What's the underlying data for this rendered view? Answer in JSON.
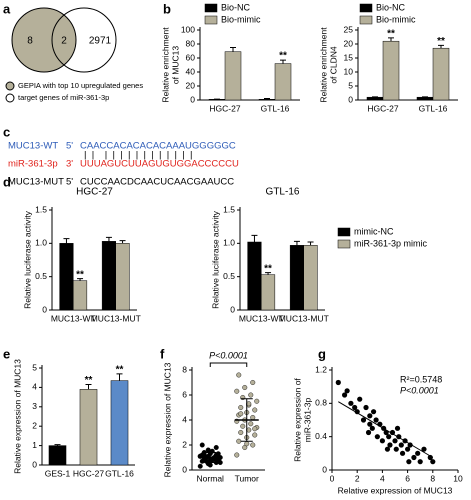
{
  "panel_labels": [
    "a",
    "b",
    "c",
    "d",
    "e",
    "f",
    "g"
  ],
  "venn": {
    "left_only": 8,
    "overlap": 2,
    "right_only": 2971,
    "left_color": "#b5b09a",
    "right_color": "#ffffff",
    "legend": [
      "GEPIA with top 10 upregulated genes",
      "target genes of miR-361-3p"
    ]
  },
  "sequences": {
    "rows": [
      {
        "name": "MUC13-WT",
        "end": "5'",
        "seq": "CAACCACACACACAAAUGGGGGC",
        "color": "#2e5cb8"
      },
      {
        "name": "miR-361-3p",
        "end": "3'",
        "seq": "UUUAGUCUUAGUGUGGACCCCCU",
        "color": "#e0231c"
      },
      {
        "name": "MUC13-MUT",
        "end": "5'",
        "seq": "CUCCAACDCAACUCAACGAAUCC",
        "color": "#000000"
      }
    ],
    "pairing": "|  |    |  |  |  |  |  |  |  |  |  |  |  |"
  },
  "chart_data": [
    {
      "type": "bar",
      "ylabel": [
        "Relative enrichment",
        "of MUC13"
      ],
      "categories": [
        "HGC-27",
        "GTL-16"
      ],
      "series": [
        {
          "name": "Bio-NC",
          "color": "#000000",
          "values": [
            1,
            1
          ],
          "errors": [
            0.3,
            1.2
          ]
        },
        {
          "name": "Bio-mimic",
          "color": "#b5b09a",
          "values": [
            69,
            52
          ],
          "errors": [
            6,
            5
          ],
          "significance": [
            null,
            "**"
          ]
        }
      ],
      "ylim": [
        0,
        100
      ],
      "yticks": [
        0,
        20,
        40,
        60,
        80,
        100
      ]
    },
    {
      "type": "bar",
      "ylabel": [
        "Relative enrichment",
        "of CLDN4"
      ],
      "categories": [
        "HGC-27",
        "GTL-16"
      ],
      "series": [
        {
          "name": "Bio-NC",
          "color": "#000000",
          "values": [
            1,
            1
          ],
          "errors": [
            0.1,
            0.1
          ]
        },
        {
          "name": "Bio-mimic",
          "color": "#b5b09a",
          "values": [
            21,
            18.5
          ],
          "errors": [
            1.2,
            1
          ],
          "significance": [
            "**",
            "**"
          ]
        }
      ],
      "ylim": [
        0,
        25
      ],
      "yticks": [
        0,
        5,
        10,
        15,
        20,
        25
      ]
    },
    {
      "type": "bar",
      "title": "HGC-27",
      "ylabel": "Relative luciferase activity",
      "categories": [
        "MUC13-WT",
        "MUC13-MUT"
      ],
      "series": [
        {
          "name": "mimic-NC",
          "color": "#000000",
          "values": [
            1.0,
            1.03
          ],
          "errors": [
            0.07,
            0.06
          ]
        },
        {
          "name": "miR-361-3p mimic",
          "color": "#b5b09a",
          "values": [
            0.44,
            1.0
          ],
          "errors": [
            0.03,
            0.04
          ],
          "significance": [
            "**",
            null
          ]
        }
      ],
      "ylim": [
        0,
        1.5
      ],
      "yticks": [
        0,
        0.5,
        {
          "value": 1,
          "label": "1.0"
        },
        1.5
      ]
    },
    {
      "type": "bar",
      "title": "GTL-16",
      "ylabel": "Relative luciferase activity",
      "categories": [
        "MUC13-WT",
        "MUC13-MUT"
      ],
      "series": [
        {
          "color": "#000000",
          "values": [
            1.02,
            0.97
          ],
          "errors": [
            0.1,
            0.06
          ]
        },
        {
          "color": "#b5b09a",
          "values": [
            0.53,
            0.97
          ],
          "errors": [
            0.03,
            0.05
          ],
          "significance": [
            "**",
            null
          ]
        }
      ],
      "ylim": [
        0,
        1.5
      ],
      "yticks": [
        0,
        0.5,
        {
          "value": 1,
          "label": "1.0"
        },
        1.5
      ]
    },
    {
      "type": "bar",
      "ylabel": "Relative expression of MUC13",
      "categories": [
        "GES-1",
        "HGC-27",
        "GTL-16"
      ],
      "series": [
        {
          "colors": [
            "#000000",
            "#b5b09a",
            "#5b8ac8"
          ],
          "values": [
            1.0,
            3.9,
            4.35
          ],
          "errors": [
            0.05,
            0.25,
            0.35
          ],
          "significance": [
            null,
            "**",
            "**"
          ]
        }
      ],
      "ylim": [
        0,
        5
      ],
      "yticks": [
        0,
        1,
        2,
        3,
        4,
        5
      ]
    },
    {
      "type": "dotplot",
      "ylabel": "Relative expression of MUC13",
      "categories": [
        "Normal",
        "Tumor"
      ],
      "annotation": "P<0.0001",
      "values": [
        [
          0.3,
          0.5,
          0.6,
          0.7,
          0.8,
          0.8,
          0.9,
          0.9,
          1.0,
          1.0,
          1.0,
          1.1,
          1.1,
          1.2,
          1.2,
          1.3,
          1.3,
          1.4,
          1.5,
          0.6,
          0.7,
          0.9,
          1.1,
          1.6,
          1.8,
          2.0,
          0.4,
          1.0,
          1.2,
          0.8
        ],
        [
          1.2,
          1.8,
          2.0,
          2.3,
          2.6,
          2.8,
          3.0,
          3.2,
          3.4,
          3.5,
          3.7,
          3.9,
          4.0,
          4.2,
          4.4,
          4.6,
          4.8,
          5.0,
          5.2,
          5.5,
          5.8,
          6.0,
          6.3,
          6.6,
          7.0,
          7.6,
          2.1,
          3.3,
          4.5,
          5.3
        ]
      ],
      "means": [
        1.0,
        4.0
      ],
      "errors": [
        0.4,
        1.7
      ],
      "color": "#b5b09a",
      "ylim": [
        0,
        8
      ],
      "yticks": [
        0,
        2,
        4,
        6,
        8
      ]
    },
    {
      "type": "scatter",
      "ylabel": [
        "Relative expression of",
        "miR-361-3p"
      ],
      "xlabel": "Relative expression of MUC13",
      "annotations": [
        "R²=0.5748",
        "P<0.0001"
      ],
      "color": "#000000",
      "x": [
        0.5,
        1.0,
        1.2,
        1.5,
        1.8,
        2.0,
        2.2,
        2.5,
        2.7,
        3.0,
        3.0,
        3.2,
        3.5,
        3.6,
        3.8,
        4.0,
        4.1,
        4.3,
        4.5,
        4.6,
        4.8,
        5.0,
        5.1,
        5.3,
        5.5,
        5.6,
        5.8,
        6.0,
        6.2,
        6.5,
        6.8,
        7.0,
        7.3,
        7.8,
        8.0,
        3.3,
        4.4,
        2.9,
        5.2,
        6.1
      ],
      "y": [
        1.05,
        0.9,
        0.95,
        0.8,
        0.75,
        0.7,
        0.85,
        0.6,
        0.75,
        0.55,
        0.65,
        0.5,
        0.6,
        0.4,
        0.55,
        0.35,
        0.5,
        0.45,
        0.4,
        0.3,
        0.45,
        0.35,
        0.25,
        0.4,
        0.3,
        0.2,
        0.35,
        0.25,
        0.3,
        0.15,
        0.2,
        0.1,
        0.25,
        0.15,
        0.1,
        0.7,
        0.25,
        0.45,
        0.5,
        0.1
      ],
      "fit_line": {
        "x": [
          0.5,
          8
        ],
        "y": [
          0.82,
          0.15
        ]
      },
      "xlim": [
        0,
        10
      ],
      "xticks": [
        0,
        2,
        4,
        6,
        8,
        10
      ],
      "ylim": [
        0,
        1.2
      ],
      "yticks": [
        0,
        0.4,
        0.8,
        1.2
      ]
    }
  ]
}
